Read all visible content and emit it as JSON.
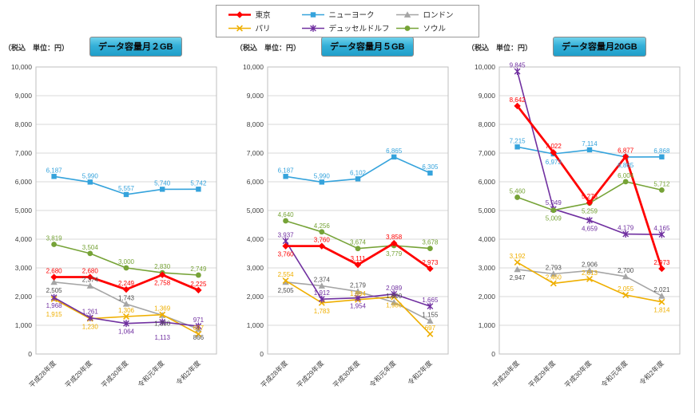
{
  "legend": {
    "items": [
      {
        "id": "tokyo",
        "label": "東京",
        "color": "#ff0000",
        "marker": "diamond"
      },
      {
        "id": "new-york",
        "label": "ニューヨーク",
        "color": "#35a3dc",
        "marker": "square"
      },
      {
        "id": "london",
        "label": "ロンドン",
        "color": "#a5a5a5",
        "marker": "triangle"
      },
      {
        "id": "paris",
        "label": "パリ",
        "color": "#efaf00",
        "marker": "x"
      },
      {
        "id": "dusseldorf",
        "label": "デュッセルドルフ",
        "color": "#7030a0",
        "marker": "asterisk"
      },
      {
        "id": "seoul",
        "label": "ソウル",
        "color": "#76a337",
        "marker": "circle"
      }
    ]
  },
  "chart_data": [
    {
      "type": "line",
      "title": "データ容量月２GB",
      "unit_label": "（税込　単位：円）",
      "categories": [
        "平成28年度",
        "平成29年度",
        "平成30年度",
        "令和元年度",
        "令和2年度"
      ],
      "ylim": [
        0,
        10000
      ],
      "ytick_step": 1000,
      "grid": true,
      "series": [
        {
          "id": "new-york",
          "name": "ニューヨーク",
          "color": "#35a3dc",
          "marker": "square",
          "values": [
            6187,
            5990,
            5557,
            5740,
            5742
          ]
        },
        {
          "id": "london",
          "name": "ロンドン",
          "color": "#a5a5a5",
          "label_color": "#4d4d4d",
          "marker": "triangle",
          "values": [
            2505,
            2374,
            1743,
            1350,
            866
          ]
        },
        {
          "id": "paris",
          "name": "パリ",
          "color": "#efaf00",
          "marker": "x",
          "values": [
            1915,
            1230,
            1306,
            1369,
            697
          ]
        },
        {
          "id": "dusseldorf",
          "name": "デュッセルドルフ",
          "color": "#7030a0",
          "marker": "asterisk",
          "values": [
            1968,
            1261,
            1064,
            1113,
            971
          ]
        },
        {
          "id": "seoul",
          "name": "ソウル",
          "color": "#76a337",
          "marker": "circle",
          "values": [
            3819,
            3504,
            3000,
            2830,
            2749
          ]
        },
        {
          "id": "tokyo",
          "name": "東京",
          "color": "#ff0000",
          "marker": "diamond",
          "values": [
            2680,
            2680,
            2249,
            2758,
            2225
          ],
          "emphasis": true
        }
      ]
    },
    {
      "type": "line",
      "title": "データ容量月５GB",
      "unit_label": "（税込　単位：円）",
      "categories": [
        "平成28年度",
        "平成29年度",
        "平成30年度",
        "令和元年度",
        "令和2年度"
      ],
      "ylim": [
        0,
        10000
      ],
      "ytick_step": 1000,
      "grid": true,
      "series": [
        {
          "id": "new-york",
          "name": "ニューヨーク",
          "color": "#35a3dc",
          "marker": "square",
          "values": [
            6187,
            5990,
            6102,
            6865,
            6305
          ]
        },
        {
          "id": "london",
          "name": "ロンドン",
          "color": "#a5a5a5",
          "label_color": "#4d4d4d",
          "marker": "triangle",
          "values": [
            2505,
            2374,
            2179,
            1800,
            1155
          ]
        },
        {
          "id": "paris",
          "name": "パリ",
          "color": "#efaf00",
          "marker": "x",
          "values": [
            2554,
            1783,
            1894,
            1986,
            697
          ]
        },
        {
          "id": "dusseldorf",
          "name": "デュッセルドルフ",
          "color": "#7030a0",
          "marker": "asterisk",
          "values": [
            3937,
            1912,
            1954,
            2089,
            1665
          ]
        },
        {
          "id": "seoul",
          "name": "ソウル",
          "color": "#76a337",
          "marker": "circle",
          "values": [
            4640,
            4256,
            3674,
            3779,
            3678
          ]
        },
        {
          "id": "tokyo",
          "name": "東京",
          "color": "#ff0000",
          "marker": "diamond",
          "values": [
            3760,
            3760,
            3111,
            3858,
            2973
          ],
          "emphasis": true
        }
      ]
    },
    {
      "type": "line",
      "title": "データ容量月20GB",
      "unit_label": "（税込　単位：円）",
      "categories": [
        "平成28年度",
        "平成29年度",
        "平成30年度",
        "令和元年度",
        "令和2年度"
      ],
      "ylim": [
        0,
        10000
      ],
      "ytick_step": 1000,
      "grid": true,
      "series": [
        {
          "id": "new-york",
          "name": "ニューヨーク",
          "color": "#35a3dc",
          "marker": "square",
          "values": [
            7215,
            6973,
            7114,
            6865,
            6868
          ]
        },
        {
          "id": "london",
          "name": "ロンドン",
          "color": "#a5a5a5",
          "label_color": "#4d4d4d",
          "marker": "triangle",
          "values": [
            2947,
            2793,
            2906,
            2700,
            2021
          ]
        },
        {
          "id": "paris",
          "name": "パリ",
          "color": "#efaf00",
          "marker": "x",
          "values": [
            3192,
            2460,
            2613,
            2055,
            1814
          ]
        },
        {
          "id": "dusseldorf",
          "name": "デュッセルドルフ",
          "color": "#7030a0",
          "marker": "asterisk",
          "values": [
            9845,
            5049,
            4659,
            4179,
            4165
          ]
        },
        {
          "id": "seoul",
          "name": "ソウル",
          "color": "#76a337",
          "marker": "circle",
          "values": [
            5460,
            5009,
            5259,
            6004,
            5712
          ]
        },
        {
          "id": "tokyo",
          "name": "東京",
          "color": "#ff0000",
          "marker": "diamond",
          "values": [
            8642,
            7022,
            5273,
            6877,
            2973
          ],
          "emphasis": true
        }
      ]
    }
  ]
}
